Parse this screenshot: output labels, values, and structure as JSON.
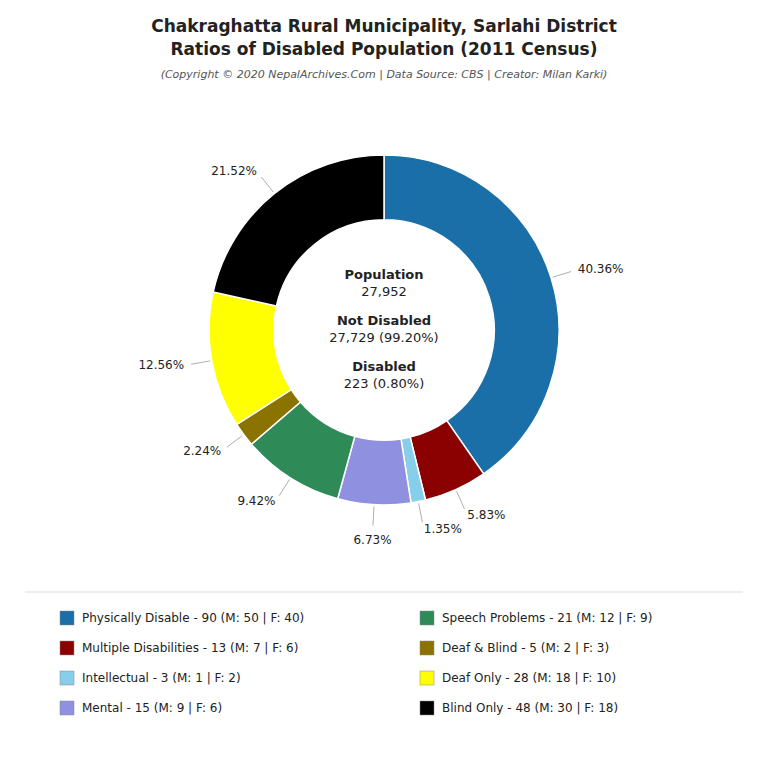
{
  "chart_data": {
    "type": "donut",
    "title": [
      "Chakraghatta Rural Municipality, Sarlahi District",
      "Ratios of Disabled Population (2011 Census)"
    ],
    "subtitle": "(Copyright © 2020 NepalArchives.Com | Data Source: CBS | Creator: Milan Karki)",
    "categories": [
      "Physically Disable - 90 (M: 50 | F: 40)",
      "Multiple Disabilities - 13 (M: 7 | F: 6)",
      "Intellectual - 3 (M: 1 | F: 2)",
      "Mental - 15 (M: 9 | F: 6)",
      "Speech Problems - 21 (M: 12 | F: 9)",
      "Deaf & Blind - 5 (M: 2 | F: 3)",
      "Deaf Only - 28 (M: 18 | F: 10)",
      "Blind Only - 48 (M: 30 | F: 18)"
    ],
    "values": [
      40.36,
      5.83,
      1.35,
      6.73,
      9.42,
      2.24,
      12.56,
      21.52
    ],
    "value_labels": [
      "40.36%",
      "5.83%",
      "1.35%",
      "6.73%",
      "9.42%",
      "2.24%",
      "12.56%",
      "21.52%"
    ],
    "colors": [
      "#1a6fa8",
      "#8b0000",
      "#87ceeb",
      "#9090e0",
      "#2e8b57",
      "#8b7300",
      "#ffff00",
      "#000000"
    ],
    "data_labels": true,
    "legend": "bottom",
    "annotations": [
      "Population",
      "27,952",
      "Not Disabled",
      "27,729 (99.20%)",
      "Disabled",
      "223 (0.80%)"
    ]
  }
}
